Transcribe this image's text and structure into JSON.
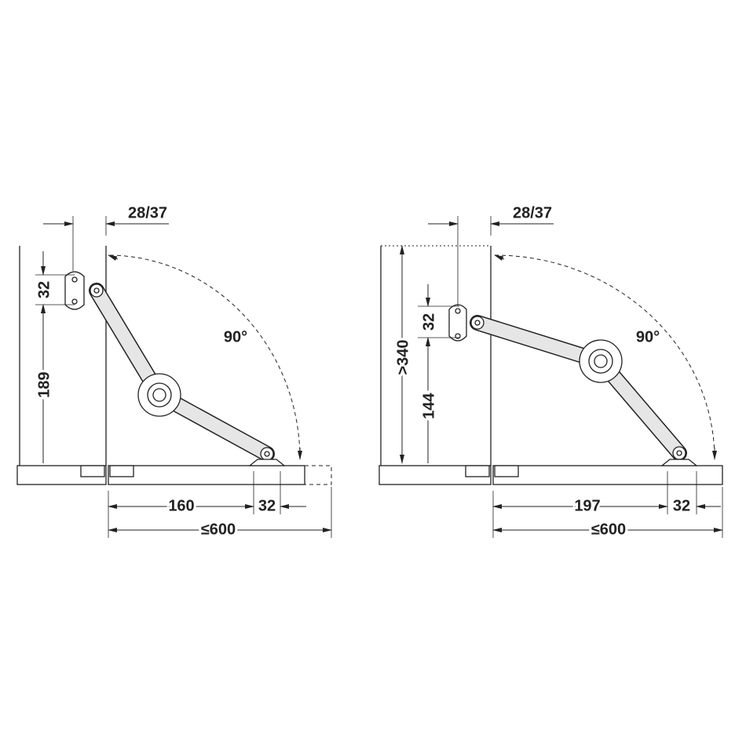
{
  "left": {
    "offset_label": "28/37",
    "bracket_height": "32",
    "hinge_height": "189",
    "angle": "90°",
    "arm_distance": "160",
    "pivot_width": "32",
    "lid_depth": "≤600"
  },
  "right": {
    "offset_label": "28/37",
    "bracket_height": "32",
    "cabinet_height": ">340",
    "hinge_height": "144",
    "angle": "90°",
    "arm_distance": "197",
    "pivot_width": "32",
    "lid_depth": "≤600"
  }
}
